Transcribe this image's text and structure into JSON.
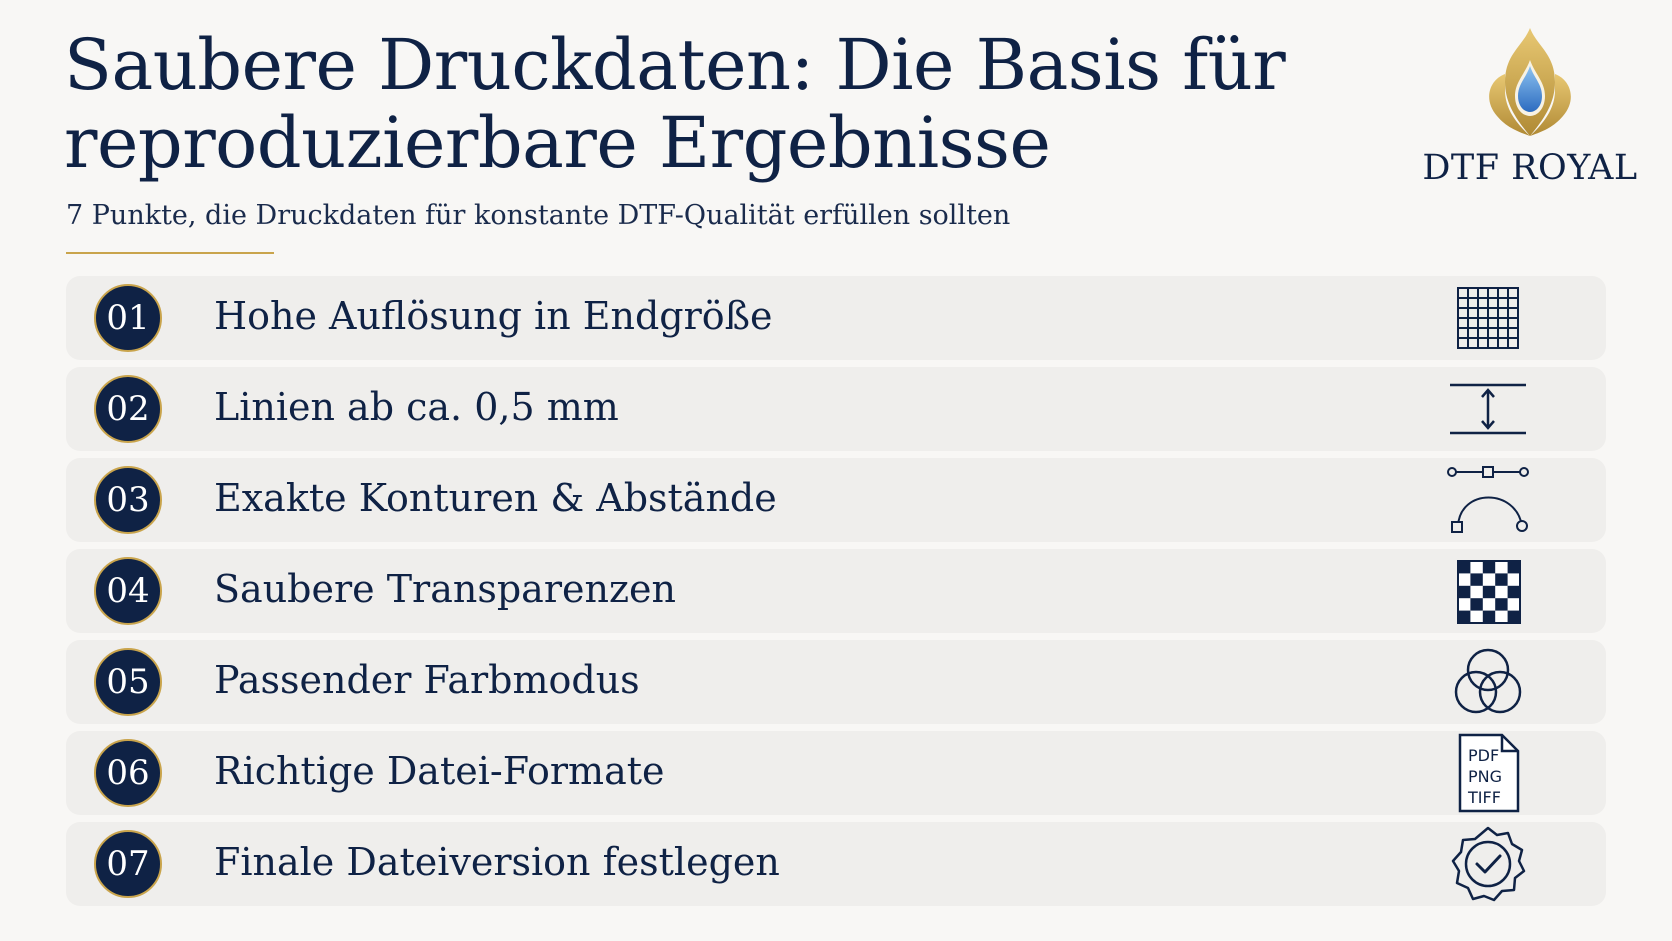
{
  "header": {
    "title": "Saubere Druckdaten: Die Basis für reproduzierbare Ergebnisse",
    "subtitle": "7 Punkte, die Druckdaten für konstante DTF-Qualität erfüllen sollten"
  },
  "brand": {
    "name": "DTF ROYAL",
    "icon": "gold-flame-drop-icon",
    "gold": "#c9a44c",
    "drop_blue": "#3b7fd1"
  },
  "colors": {
    "navy": "#0f2245",
    "row_bg": "#efeeec",
    "page_bg": "#f8f7f5"
  },
  "items": [
    {
      "number": "01",
      "label": "Hohe Auflösung in Endgröße",
      "icon": "pixel-grid-icon"
    },
    {
      "number": "02",
      "label": "Linien ab ca. 0,5 mm",
      "icon": "line-thickness-icon"
    },
    {
      "number": "03",
      "label": "Exakte Konturen & Abstände",
      "icon": "bezier-curve-icon"
    },
    {
      "number": "04",
      "label": "Saubere Transparenzen",
      "icon": "transparency-checker-icon"
    },
    {
      "number": "05",
      "label": "Passender Farbmodus",
      "icon": "color-circles-icon"
    },
    {
      "number": "06",
      "label": "Richtige Datei-Formate",
      "icon": "file-formats-icon",
      "icon_text": [
        "PDF",
        "PNG",
        "TIFF"
      ]
    },
    {
      "number": "07",
      "label": "Finale Dateiversion festlegen",
      "icon": "approved-badge-icon"
    }
  ]
}
